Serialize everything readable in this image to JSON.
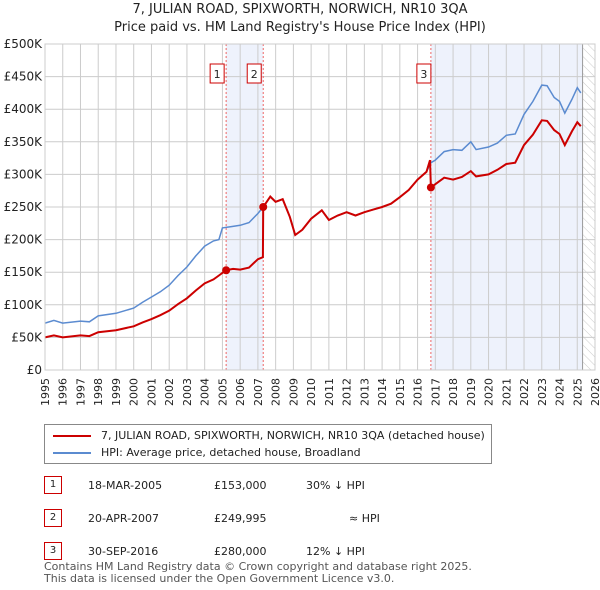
{
  "chart_data": {
    "type": "line",
    "title": "7, JULIAN ROAD, SPIXWORTH, NORWICH, NR10 3QA",
    "subtitle": "Price paid vs. HM Land Registry's House Price Index (HPI)",
    "xlim": [
      1995,
      2026
    ],
    "ylim": [
      0,
      500000
    ],
    "x_ticks": [
      "1995",
      "1996",
      "1997",
      "1998",
      "1999",
      "2000",
      "2001",
      "2002",
      "2003",
      "2004",
      "2005",
      "2006",
      "2007",
      "2008",
      "2009",
      "2010",
      "2011",
      "2012",
      "2013",
      "2014",
      "2015",
      "2016",
      "2017",
      "2018",
      "2019",
      "2020",
      "2021",
      "2022",
      "2023",
      "2024",
      "2025",
      "2026"
    ],
    "y_ticks": [
      "£0",
      "£50K",
      "£100K",
      "£150K",
      "£200K",
      "£250K",
      "£300K",
      "£350K",
      "£400K",
      "£450K",
      "£500K"
    ],
    "grid": true,
    "series": [
      {
        "name": "7, JULIAN ROAD, SPIXWORTH, NORWICH, NR10 3QA (detached house)",
        "color": "#cc0000",
        "points": [
          [
            1995,
            50
          ],
          [
            1995.5,
            53
          ],
          [
            1996,
            50
          ],
          [
            1997,
            53
          ],
          [
            1997.5,
            52
          ],
          [
            1998,
            58
          ],
          [
            1999,
            61
          ],
          [
            2000,
            67
          ],
          [
            2000.5,
            73
          ],
          [
            2001,
            78
          ],
          [
            2001.5,
            84
          ],
          [
            2002,
            91
          ],
          [
            2002.5,
            101
          ],
          [
            2003,
            110
          ],
          [
            2003.5,
            122
          ],
          [
            2004,
            133
          ],
          [
            2004.5,
            139
          ],
          [
            2004.8,
            145
          ],
          [
            2005.2,
            153
          ],
          [
            2005.6,
            155
          ],
          [
            2006,
            154
          ],
          [
            2006.5,
            157
          ],
          [
            2007,
            170
          ],
          [
            2007.28,
            173
          ],
          [
            2007.3,
            249.995
          ],
          [
            2007.7,
            266
          ],
          [
            2008,
            258
          ],
          [
            2008.4,
            262
          ],
          [
            2008.8,
            235
          ],
          [
            2009.1,
            207
          ],
          [
            2009.5,
            215
          ],
          [
            2010,
            232
          ],
          [
            2010.6,
            245
          ],
          [
            2011,
            230
          ],
          [
            2011.5,
            237
          ],
          [
            2012,
            242
          ],
          [
            2012.5,
            237
          ],
          [
            2013,
            242
          ],
          [
            2013.5,
            246
          ],
          [
            2014,
            250
          ],
          [
            2014.5,
            255
          ],
          [
            2015,
            265
          ],
          [
            2015.5,
            276
          ],
          [
            2016,
            292
          ],
          [
            2016.5,
            304
          ],
          [
            2016.7,
            322
          ],
          [
            2016.75,
            280
          ],
          [
            2017,
            285
          ],
          [
            2017.5,
            295
          ],
          [
            2018,
            292
          ],
          [
            2018.5,
            296
          ],
          [
            2019,
            305
          ],
          [
            2019.3,
            297
          ],
          [
            2020,
            300
          ],
          [
            2020.5,
            307
          ],
          [
            2021,
            316
          ],
          [
            2021.5,
            318
          ],
          [
            2022,
            345
          ],
          [
            2022.5,
            361
          ],
          [
            2023,
            383
          ],
          [
            2023.3,
            382
          ],
          [
            2023.7,
            368
          ],
          [
            2024,
            362
          ],
          [
            2024.3,
            345
          ],
          [
            2024.7,
            366
          ],
          [
            2025,
            380
          ],
          [
            2025.2,
            374
          ]
        ]
      },
      {
        "name": "HPI: Average price, detached house, Broadland",
        "color": "#5b8bd0",
        "points": [
          [
            1995,
            72
          ],
          [
            1995.5,
            76
          ],
          [
            1996,
            72
          ],
          [
            1997,
            75
          ],
          [
            1997.5,
            74
          ],
          [
            1998,
            83
          ],
          [
            1999,
            87
          ],
          [
            2000,
            95
          ],
          [
            2000.5,
            104
          ],
          [
            2001,
            112
          ],
          [
            2001.5,
            120
          ],
          [
            2002,
            130
          ],
          [
            2002.5,
            145
          ],
          [
            2003,
            158
          ],
          [
            2003.5,
            175
          ],
          [
            2004,
            190
          ],
          [
            2004.5,
            198
          ],
          [
            2004.8,
            200
          ],
          [
            2005,
            218
          ],
          [
            2005.5,
            220
          ],
          [
            2006,
            222
          ],
          [
            2006.5,
            226
          ],
          [
            2007,
            240
          ],
          [
            2007.3,
            250
          ],
          [
            2007.7,
            266
          ],
          [
            2008,
            258
          ],
          [
            2008.4,
            262
          ],
          [
            2008.8,
            235
          ],
          [
            2009.1,
            207
          ],
          [
            2009.5,
            215
          ],
          [
            2010,
            232
          ],
          [
            2010.6,
            245
          ],
          [
            2011,
            230
          ],
          [
            2011.5,
            237
          ],
          [
            2012,
            242
          ],
          [
            2012.5,
            237
          ],
          [
            2013,
            242
          ],
          [
            2013.5,
            246
          ],
          [
            2014,
            250
          ],
          [
            2014.5,
            255
          ],
          [
            2015,
            265
          ],
          [
            2015.5,
            276
          ],
          [
            2016,
            292
          ],
          [
            2016.5,
            304
          ],
          [
            2016.75,
            318
          ],
          [
            2017,
            322
          ],
          [
            2017.5,
            335
          ],
          [
            2018,
            338
          ],
          [
            2018.5,
            337
          ],
          [
            2019,
            350
          ],
          [
            2019.3,
            338
          ],
          [
            2020,
            342
          ],
          [
            2020.5,
            348
          ],
          [
            2021,
            360
          ],
          [
            2021.5,
            362
          ],
          [
            2022,
            392
          ],
          [
            2022.5,
            412
          ],
          [
            2023,
            437
          ],
          [
            2023.3,
            436
          ],
          [
            2023.7,
            418
          ],
          [
            2024,
            412
          ],
          [
            2024.3,
            394
          ],
          [
            2024.7,
            415
          ],
          [
            2025,
            433
          ],
          [
            2025.2,
            425
          ]
        ]
      }
    ],
    "sales": [
      {
        "label": "1",
        "year": 2005.21,
        "price": 153000
      },
      {
        "label": "2",
        "year": 2007.3,
        "price": 249995
      },
      {
        "label": "3",
        "year": 2016.75,
        "price": 280000
      }
    ],
    "projection_start": 2025.3
  },
  "legend": {
    "items": [
      {
        "label": "7, JULIAN ROAD, SPIXWORTH, NORWICH, NR10 3QA (detached house)",
        "color": "#cc0000"
      },
      {
        "label": "HPI: Average price, detached house, Broadland",
        "color": "#5b8bd0"
      }
    ]
  },
  "table": [
    {
      "num": "1",
      "date": "18-MAR-2005",
      "price": "£153,000",
      "hpi": "30% ↓ HPI"
    },
    {
      "num": "2",
      "date": "20-APR-2007",
      "price": "£249,995",
      "hpi": "≈ HPI"
    },
    {
      "num": "3",
      "date": "30-SEP-2016",
      "price": "£280,000",
      "hpi": "12% ↓ HPI"
    }
  ],
  "footer": [
    "Contains HM Land Registry data © Crown copyright and database right 2025.",
    "This data is licensed under the Open Government Licence v3.0."
  ]
}
